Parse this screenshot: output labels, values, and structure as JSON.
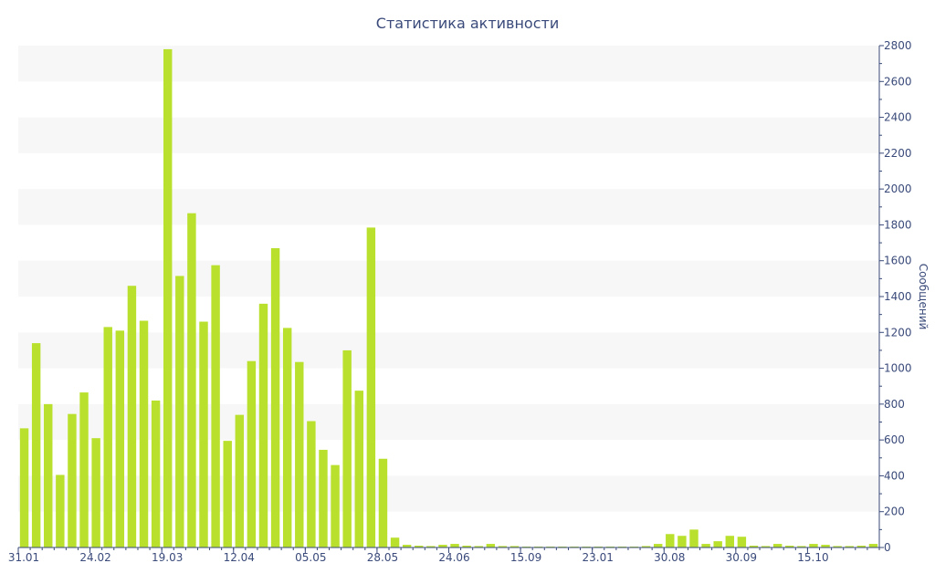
{
  "chart_data": {
    "type": "bar",
    "title": "Статистика активности",
    "xlabel": "",
    "ylabel": "Сообщений",
    "ylim": [
      0,
      2800
    ],
    "y_ticks": [
      0,
      200,
      400,
      600,
      800,
      1000,
      1200,
      1400,
      1600,
      1800,
      2000,
      2200,
      2400,
      2600,
      2800
    ],
    "y_axis_side": "right",
    "grid": "alternating horizontal bands",
    "x_tick_labels": [
      {
        "label": "31.01",
        "index": 0
      },
      {
        "label": "24.02",
        "index": 6
      },
      {
        "label": "19.03",
        "index": 12
      },
      {
        "label": "12.04",
        "index": 18
      },
      {
        "label": "05.05",
        "index": 24
      },
      {
        "label": "28.05",
        "index": 30
      },
      {
        "label": "24.06",
        "index": 36
      },
      {
        "label": "15.09",
        "index": 42
      },
      {
        "label": "23.01",
        "index": 48
      },
      {
        "label": "30.08",
        "index": 54
      },
      {
        "label": "30.09",
        "index": 60
      },
      {
        "label": "15.10",
        "index": 66
      }
    ],
    "bar_color": "#b9e02c",
    "values": [
      665,
      1140,
      800,
      405,
      745,
      865,
      610,
      1230,
      1210,
      1460,
      1265,
      820,
      2780,
      1515,
      1865,
      1260,
      1575,
      595,
      740,
      1040,
      1360,
      1670,
      1225,
      1035,
      705,
      545,
      460,
      1100,
      875,
      1785,
      495,
      55,
      15,
      10,
      8,
      15,
      20,
      10,
      8,
      20,
      8,
      8,
      5,
      5,
      5,
      5,
      5,
      5,
      5,
      5,
      5,
      5,
      8,
      20,
      75,
      65,
      100,
      20,
      35,
      65,
      60,
      10,
      8,
      20,
      10,
      8,
      20,
      15,
      8,
      8,
      10,
      20
    ]
  }
}
